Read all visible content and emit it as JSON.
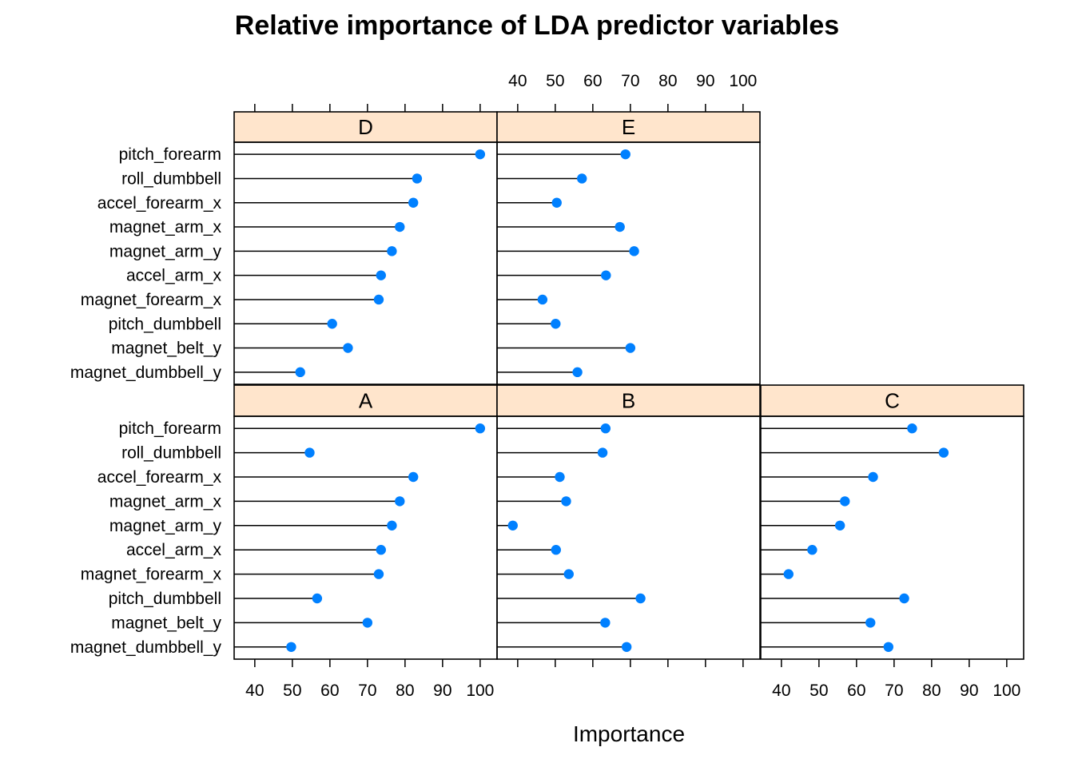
{
  "chart_data": {
    "type": "dotplot",
    "title": "Relative importance of LDA predictor variables",
    "xlabel": "Importance",
    "ylabel": "",
    "xlim": [
      34.5,
      104.5
    ],
    "x_ticks": [
      40,
      50,
      60,
      70,
      80,
      90,
      100
    ],
    "categories": [
      "pitch_forearm",
      "roll_dumbbell",
      "accel_forearm_x",
      "magnet_arm_x",
      "magnet_arm_y",
      "accel_arm_x",
      "magnet_forearm_x",
      "pitch_dumbbell",
      "magnet_belt_y",
      "magnet_dumbbell_y"
    ],
    "panels": [
      {
        "name": "D",
        "values": [
          100,
          83.2,
          82.2,
          78.6,
          76.5,
          73.6,
          73.0,
          60.6,
          64.8,
          52.1
        ]
      },
      {
        "name": "E",
        "values": [
          68.7,
          57.1,
          50.4,
          67.2,
          71.0,
          63.5,
          46.6,
          50.1,
          70.0,
          55.9
        ]
      },
      {
        "name": "A",
        "values": [
          100,
          54.6,
          82.2,
          78.6,
          76.5,
          73.6,
          73.0,
          56.6,
          70.0,
          49.7
        ]
      },
      {
        "name": "B",
        "values": [
          63.4,
          62.6,
          51.2,
          52.9,
          38.7,
          50.2,
          53.6,
          72.7,
          63.3,
          69.0
        ]
      },
      {
        "name": "C",
        "values": [
          74.8,
          83.2,
          64.4,
          56.9,
          55.6,
          48.2,
          41.9,
          72.7,
          63.7,
          68.5
        ]
      }
    ],
    "strip_color": "#ffe5cc",
    "point_color": "#0080ff",
    "grid": false,
    "legend": "none"
  }
}
